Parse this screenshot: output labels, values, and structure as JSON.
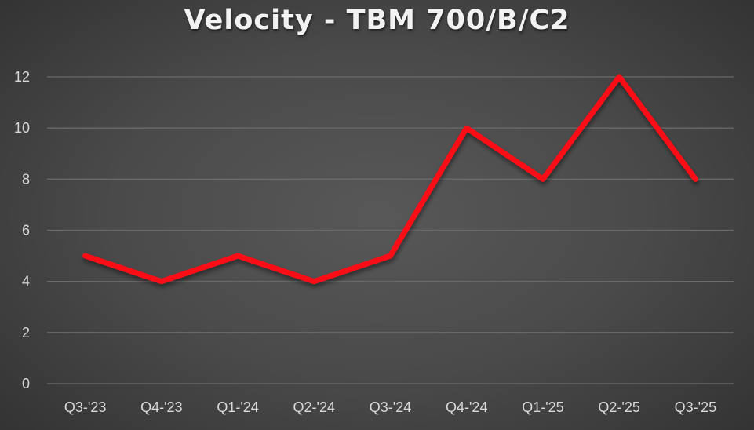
{
  "chart_data": {
    "type": "line",
    "title": "Velocity - TBM 700/B/C2",
    "xlabel": "",
    "ylabel": "",
    "categories": [
      "Q3-'23",
      "Q4-'23",
      "Q1-'24",
      "Q2-'24",
      "Q3-'24",
      "Q4-'24",
      "Q1-'25",
      "Q2-'25",
      "Q3-'25"
    ],
    "series": [
      {
        "name": "Velocity",
        "values": [
          5,
          4,
          5,
          4,
          5,
          10,
          8,
          12,
          8
        ],
        "color": "#ff0d17"
      }
    ],
    "ylim": [
      0,
      12
    ],
    "yticks": [
      0,
      2,
      4,
      6,
      8,
      10,
      12
    ],
    "grid": true,
    "legend": "none"
  },
  "colors": {
    "line": "#ff0d17",
    "grid": "#6a6a6a",
    "text": "#d9d9d9",
    "title": "#f2f2f2"
  }
}
